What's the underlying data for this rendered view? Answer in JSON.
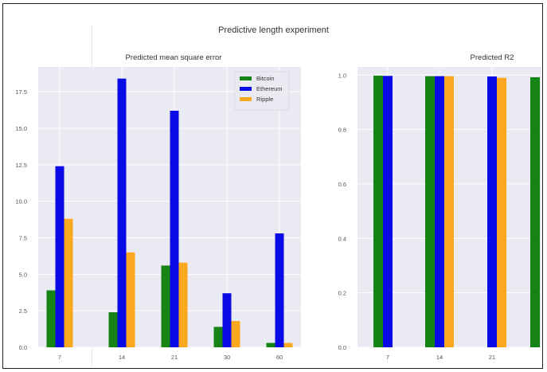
{
  "suptitle": "Predictive length experiment",
  "chart_data": [
    {
      "type": "bar",
      "title": "Predicted mean square error",
      "categories": [
        "7",
        "14",
        "21",
        "30",
        "60"
      ],
      "ylim": [
        0,
        19.2
      ],
      "yticks": [
        "0.0",
        "2.5",
        "5.0",
        "7.5",
        "10.0",
        "12.5",
        "15.0",
        "17.5"
      ],
      "series": [
        {
          "name": "Bitcoin",
          "values": [
            3.9,
            2.4,
            5.6,
            1.4,
            0.3
          ]
        },
        {
          "name": "Ethereum",
          "values": [
            12.4,
            18.4,
            16.2,
            3.7,
            7.8
          ]
        },
        {
          "name": "Ripple",
          "values": [
            8.8,
            6.5,
            5.8,
            1.8,
            0.3
          ]
        }
      ],
      "colors": [
        "#158415",
        "#0a0ae6",
        "#f9a820"
      ],
      "legend": "top-right",
      "grid": true
    },
    {
      "type": "bar",
      "title": "Predicted R2",
      "categories": [
        "7",
        "14",
        "21",
        ""
      ],
      "ylim": [
        0,
        1.03
      ],
      "yticks": [
        "0.0",
        "0.2",
        "0.4",
        "0.6",
        "0.8",
        "1.0"
      ],
      "series": [
        {
          "name": "Bitcoin",
          "values": [
            0.998,
            0.996,
            null,
            0.992
          ]
        },
        {
          "name": "Ethereum",
          "values": [
            0.997,
            0.996,
            0.995,
            null
          ]
        },
        {
          "name": "Ripple",
          "values": [
            null,
            0.996,
            0.99,
            null
          ]
        }
      ],
      "colors": [
        "#158415",
        "#0a0ae6",
        "#f9a820"
      ],
      "grid": true
    }
  ]
}
